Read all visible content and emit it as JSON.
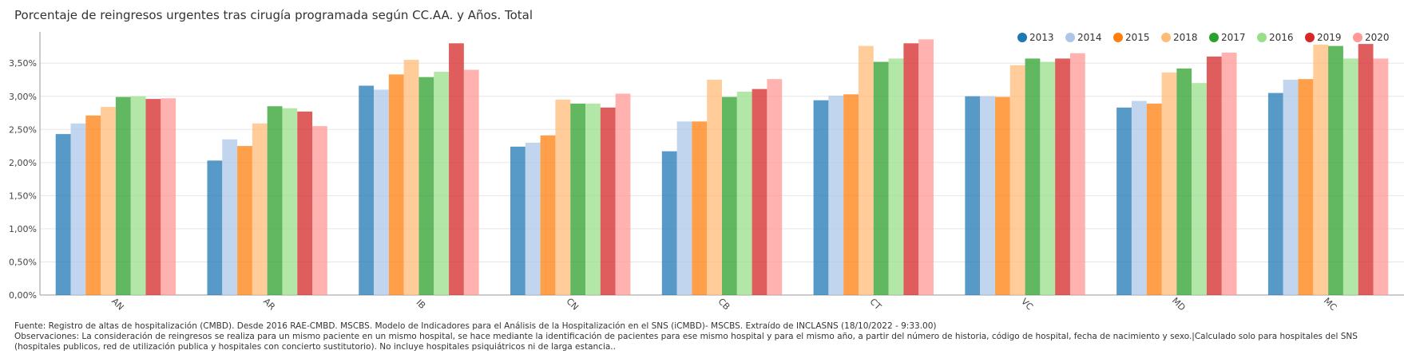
{
  "chart_data": {
    "type": "bar",
    "title": "Porcentaje de reingresos urgentes tras cirugía programada según CC.AA. y Años. Total",
    "xlabel": "",
    "ylabel": "",
    "ylim": [
      0,
      3.9
    ],
    "y_ticks": [
      "0,00%",
      "0,50%",
      "1,00%",
      "1,50%",
      "2,00%",
      "2,50%",
      "3,00%",
      "3,50%"
    ],
    "grid": true,
    "legend_position": "top-right",
    "categories": [
      "AN",
      "AR",
      "IB",
      "CN",
      "CB",
      "CT",
      "VC",
      "MD",
      "MC"
    ],
    "series": [
      {
        "name": "2013",
        "color": "#1f77b4",
        "values": [
          2.43,
          2.03,
          3.16,
          2.24,
          2.17,
          2.94,
          3.0,
          2.83,
          3.05
        ]
      },
      {
        "name": "2014",
        "color": "#aec7e8",
        "values": [
          2.59,
          2.35,
          3.1,
          2.3,
          2.62,
          3.01,
          3.0,
          2.93,
          3.25
        ]
      },
      {
        "name": "2015",
        "color": "#ff7f0e",
        "values": [
          2.71,
          2.25,
          3.33,
          2.41,
          2.62,
          3.03,
          2.99,
          2.89,
          3.26
        ]
      },
      {
        "name": "2018",
        "color": "#ffbb78",
        "values": [
          2.84,
          2.59,
          3.55,
          2.95,
          3.25,
          3.76,
          3.47,
          3.36,
          3.78
        ]
      },
      {
        "name": "2017",
        "color": "#2ca02c",
        "values": [
          2.99,
          2.85,
          3.29,
          2.89,
          2.99,
          3.52,
          3.57,
          3.42,
          3.76
        ]
      },
      {
        "name": "2016",
        "color": "#98df8a",
        "values": [
          3.0,
          2.82,
          3.37,
          2.89,
          3.07,
          3.57,
          3.52,
          3.2,
          3.57
        ]
      },
      {
        "name": "2019",
        "color": "#d62728",
        "values": [
          2.96,
          2.77,
          3.8,
          2.83,
          3.11,
          3.8,
          3.57,
          3.6,
          3.79
        ]
      },
      {
        "name": "2020",
        "color": "#ff9896",
        "values": [
          2.97,
          2.55,
          3.4,
          3.04,
          3.26,
          3.86,
          3.65,
          3.66,
          3.57
        ]
      }
    ]
  },
  "footer": {
    "source": "Fuente: Registro de altas de hospitalización (CMBD). Desde 2016 RAE-CMBD. MSCBS. Modelo de Indicadores para el Análisis de la Hospitalización en el SNS (iCMBD)- MSCBS. Extraído de INCLASNS (18/10/2022 - 9:33.00)",
    "observations": "Observaciones: La consideración de reingresos se realiza para un mismo paciente en un mismo hospital, se hace mediante la identificación de pacientes para ese mismo hospital y para el mismo año, a partir del número de historia, código de hospital, fecha de nacimiento y sexo.|Calculado solo para hospitales del SNS (hospitales publicos, red de utilización publica y hospitales con concierto sustitutorio). No incluye hospitales psiquiátricos ni de larga estancia.."
  }
}
